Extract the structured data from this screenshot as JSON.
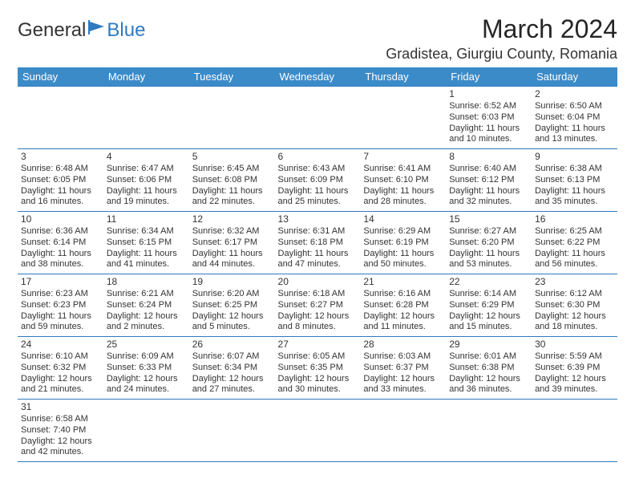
{
  "logo": {
    "text1": "General",
    "text2": "Blue"
  },
  "title": "March 2024",
  "location": "Gradistea, Giurgiu County, Romania",
  "colors": {
    "header_bg": "#3b8bc9",
    "border": "#2f7ac0",
    "text": "#333333",
    "white": "#ffffff"
  },
  "day_headers": [
    "Sunday",
    "Monday",
    "Tuesday",
    "Wednesday",
    "Thursday",
    "Friday",
    "Saturday"
  ],
  "weeks": [
    [
      null,
      null,
      null,
      null,
      null,
      {
        "n": "1",
        "sunrise": "6:52 AM",
        "sunset": "6:03 PM",
        "dl1": "11 hours",
        "dl2": "and 10 minutes."
      },
      {
        "n": "2",
        "sunrise": "6:50 AM",
        "sunset": "6:04 PM",
        "dl1": "11 hours",
        "dl2": "and 13 minutes."
      }
    ],
    [
      {
        "n": "3",
        "sunrise": "6:48 AM",
        "sunset": "6:05 PM",
        "dl1": "11 hours",
        "dl2": "and 16 minutes."
      },
      {
        "n": "4",
        "sunrise": "6:47 AM",
        "sunset": "6:06 PM",
        "dl1": "11 hours",
        "dl2": "and 19 minutes."
      },
      {
        "n": "5",
        "sunrise": "6:45 AM",
        "sunset": "6:08 PM",
        "dl1": "11 hours",
        "dl2": "and 22 minutes."
      },
      {
        "n": "6",
        "sunrise": "6:43 AM",
        "sunset": "6:09 PM",
        "dl1": "11 hours",
        "dl2": "and 25 minutes."
      },
      {
        "n": "7",
        "sunrise": "6:41 AM",
        "sunset": "6:10 PM",
        "dl1": "11 hours",
        "dl2": "and 28 minutes."
      },
      {
        "n": "8",
        "sunrise": "6:40 AM",
        "sunset": "6:12 PM",
        "dl1": "11 hours",
        "dl2": "and 32 minutes."
      },
      {
        "n": "9",
        "sunrise": "6:38 AM",
        "sunset": "6:13 PM",
        "dl1": "11 hours",
        "dl2": "and 35 minutes."
      }
    ],
    [
      {
        "n": "10",
        "sunrise": "6:36 AM",
        "sunset": "6:14 PM",
        "dl1": "11 hours",
        "dl2": "and 38 minutes."
      },
      {
        "n": "11",
        "sunrise": "6:34 AM",
        "sunset": "6:15 PM",
        "dl1": "11 hours",
        "dl2": "and 41 minutes."
      },
      {
        "n": "12",
        "sunrise": "6:32 AM",
        "sunset": "6:17 PM",
        "dl1": "11 hours",
        "dl2": "and 44 minutes."
      },
      {
        "n": "13",
        "sunrise": "6:31 AM",
        "sunset": "6:18 PM",
        "dl1": "11 hours",
        "dl2": "and 47 minutes."
      },
      {
        "n": "14",
        "sunrise": "6:29 AM",
        "sunset": "6:19 PM",
        "dl1": "11 hours",
        "dl2": "and 50 minutes."
      },
      {
        "n": "15",
        "sunrise": "6:27 AM",
        "sunset": "6:20 PM",
        "dl1": "11 hours",
        "dl2": "and 53 minutes."
      },
      {
        "n": "16",
        "sunrise": "6:25 AM",
        "sunset": "6:22 PM",
        "dl1": "11 hours",
        "dl2": "and 56 minutes."
      }
    ],
    [
      {
        "n": "17",
        "sunrise": "6:23 AM",
        "sunset": "6:23 PM",
        "dl1": "11 hours",
        "dl2": "and 59 minutes."
      },
      {
        "n": "18",
        "sunrise": "6:21 AM",
        "sunset": "6:24 PM",
        "dl1": "12 hours",
        "dl2": "and 2 minutes."
      },
      {
        "n": "19",
        "sunrise": "6:20 AM",
        "sunset": "6:25 PM",
        "dl1": "12 hours",
        "dl2": "and 5 minutes."
      },
      {
        "n": "20",
        "sunrise": "6:18 AM",
        "sunset": "6:27 PM",
        "dl1": "12 hours",
        "dl2": "and 8 minutes."
      },
      {
        "n": "21",
        "sunrise": "6:16 AM",
        "sunset": "6:28 PM",
        "dl1": "12 hours",
        "dl2": "and 11 minutes."
      },
      {
        "n": "22",
        "sunrise": "6:14 AM",
        "sunset": "6:29 PM",
        "dl1": "12 hours",
        "dl2": "and 15 minutes."
      },
      {
        "n": "23",
        "sunrise": "6:12 AM",
        "sunset": "6:30 PM",
        "dl1": "12 hours",
        "dl2": "and 18 minutes."
      }
    ],
    [
      {
        "n": "24",
        "sunrise": "6:10 AM",
        "sunset": "6:32 PM",
        "dl1": "12 hours",
        "dl2": "and 21 minutes."
      },
      {
        "n": "25",
        "sunrise": "6:09 AM",
        "sunset": "6:33 PM",
        "dl1": "12 hours",
        "dl2": "and 24 minutes."
      },
      {
        "n": "26",
        "sunrise": "6:07 AM",
        "sunset": "6:34 PM",
        "dl1": "12 hours",
        "dl2": "and 27 minutes."
      },
      {
        "n": "27",
        "sunrise": "6:05 AM",
        "sunset": "6:35 PM",
        "dl1": "12 hours",
        "dl2": "and 30 minutes."
      },
      {
        "n": "28",
        "sunrise": "6:03 AM",
        "sunset": "6:37 PM",
        "dl1": "12 hours",
        "dl2": "and 33 minutes."
      },
      {
        "n": "29",
        "sunrise": "6:01 AM",
        "sunset": "6:38 PM",
        "dl1": "12 hours",
        "dl2": "and 36 minutes."
      },
      {
        "n": "30",
        "sunrise": "5:59 AM",
        "sunset": "6:39 PM",
        "dl1": "12 hours",
        "dl2": "and 39 minutes."
      }
    ],
    [
      {
        "n": "31",
        "sunrise": "6:58 AM",
        "sunset": "7:40 PM",
        "dl1": "12 hours",
        "dl2": "and 42 minutes."
      },
      null,
      null,
      null,
      null,
      null,
      null
    ]
  ],
  "labels": {
    "sunrise": "Sunrise: ",
    "sunset": "Sunset: ",
    "daylight": "Daylight: "
  }
}
